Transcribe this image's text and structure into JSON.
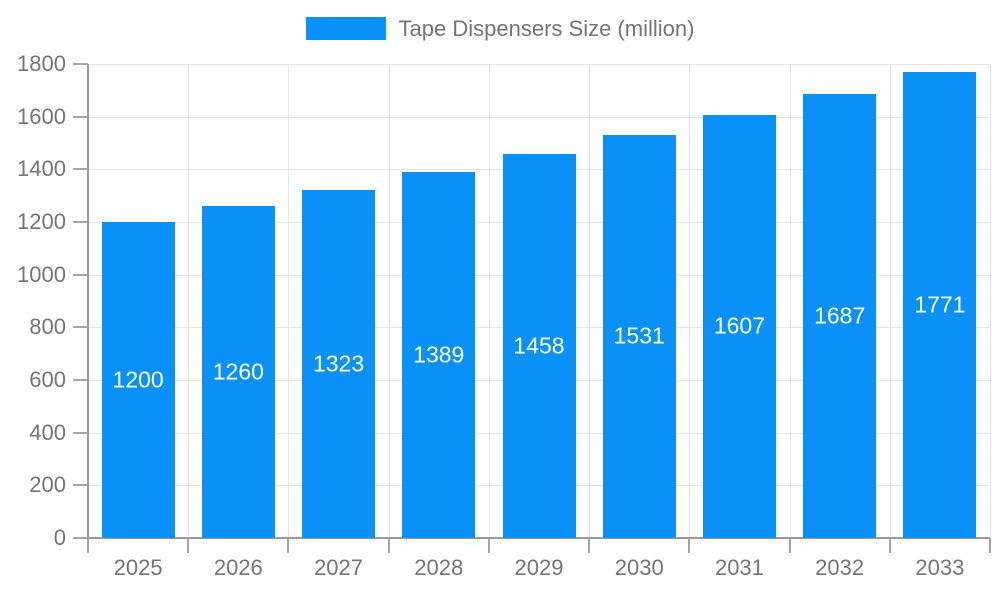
{
  "legend": {
    "label": "Tape Dispensers Size (million)"
  },
  "colors": {
    "bar": "#0a91f7",
    "grid": "#e5e5e5",
    "axis": "#9a9a9a",
    "tick": "#a6a6a6",
    "label": "#757575",
    "value_label": "#ffffff",
    "background": "#ffffff"
  },
  "chart_data": {
    "type": "bar",
    "title": "Tape Dispensers Size (million)",
    "categories": [
      "2025",
      "2026",
      "2027",
      "2028",
      "2029",
      "2030",
      "2031",
      "2032",
      "2033"
    ],
    "values": [
      1200,
      1260,
      1323,
      1389,
      1458,
      1531,
      1607,
      1687,
      1771
    ],
    "xlabel": "",
    "ylabel": "",
    "ylim": [
      0,
      1800
    ],
    "yticks": [
      0,
      200,
      400,
      600,
      800,
      1000,
      1200,
      1400,
      1600,
      1800
    ],
    "grid": true,
    "vertical_grid": true,
    "legend_position": "top-center",
    "value_labels": "inside-middle",
    "series": [
      {
        "name": "Tape Dispensers Size (million)",
        "values": [
          1200,
          1260,
          1323,
          1389,
          1458,
          1531,
          1607,
          1687,
          1771
        ]
      }
    ]
  }
}
